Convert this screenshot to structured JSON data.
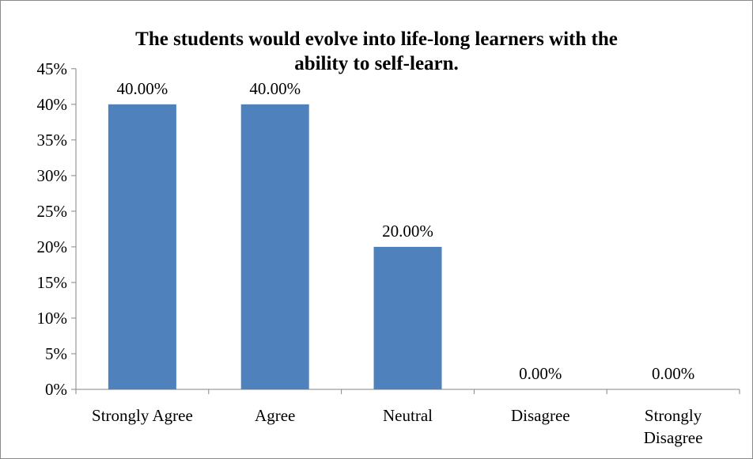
{
  "chart_data": {
    "type": "bar",
    "title_lines": [
      "The students would evolve into life-long learners with the",
      "ability to self-learn."
    ],
    "categories": [
      "Strongly Agree",
      "Agree",
      "Neutral",
      "Disagree",
      "Strongly Disagree"
    ],
    "category_label_lines": [
      [
        "Strongly Agree"
      ],
      [
        "Agree"
      ],
      [
        "Neutral"
      ],
      [
        "Disagree"
      ],
      [
        "Strongly",
        "Disagree"
      ]
    ],
    "values": [
      40,
      40,
      20,
      0,
      0
    ],
    "data_labels": [
      "40.00%",
      "40.00%",
      "20.00%",
      "0.00%",
      "0.00%"
    ],
    "y_ticks": [
      "0%",
      "5%",
      "10%",
      "15%",
      "20%",
      "25%",
      "30%",
      "35%",
      "40%",
      "45%"
    ],
    "ylim": [
      0,
      45
    ],
    "grid": false,
    "bar_color": "#4f81bd",
    "axis_color": "#868686"
  }
}
